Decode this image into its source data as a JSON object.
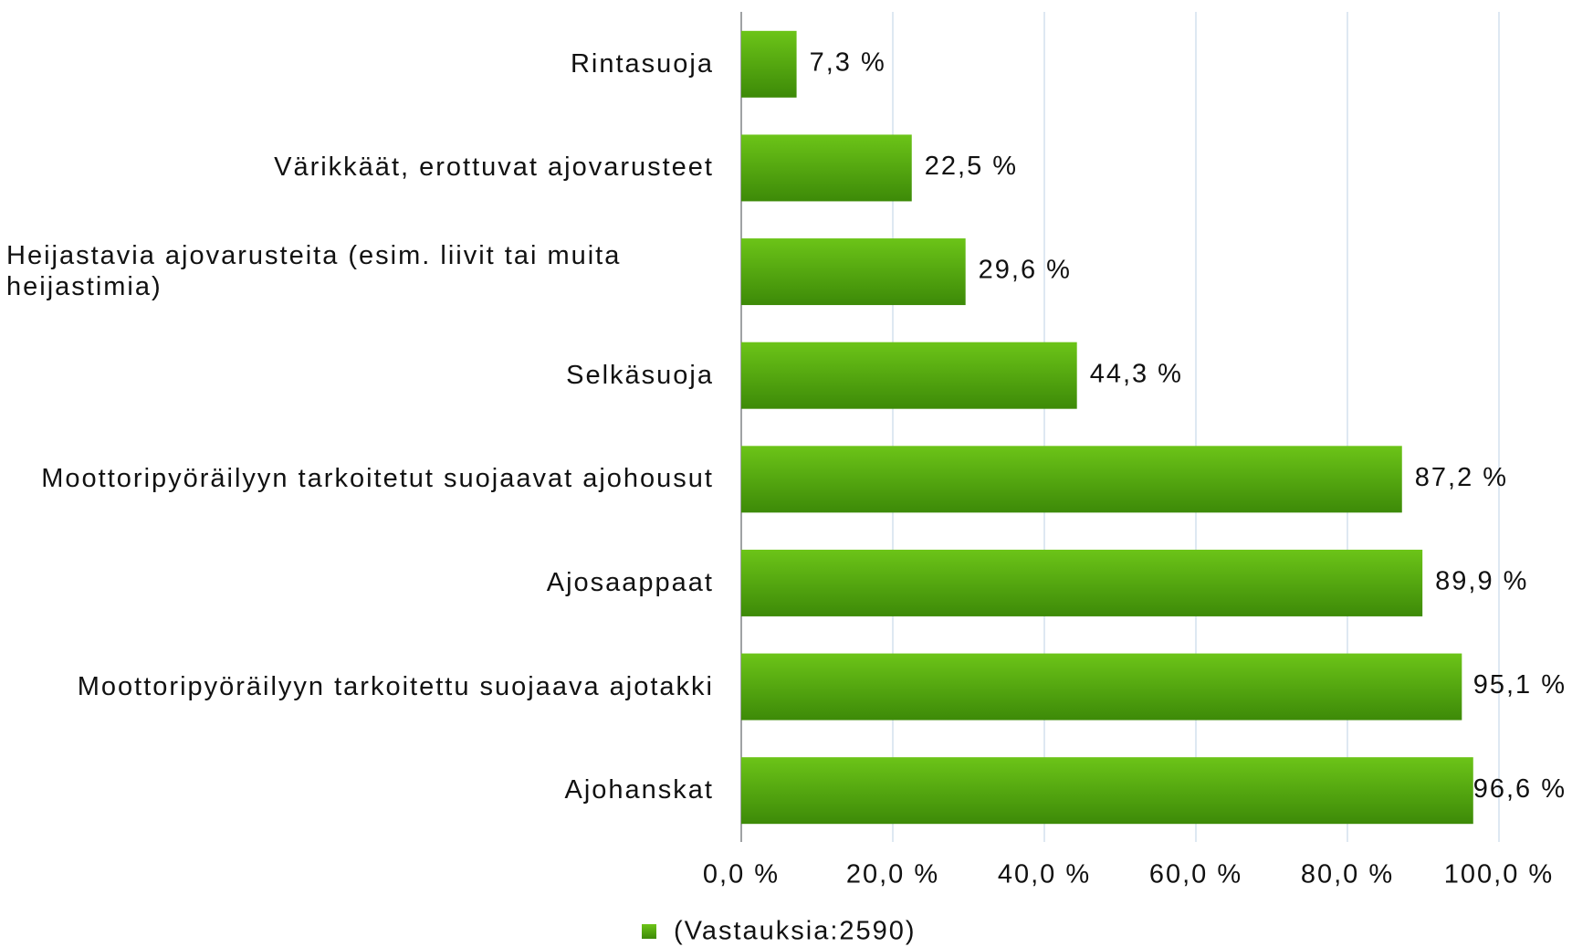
{
  "chart_data": {
    "type": "barh",
    "categories": [
      "Rintasuoja",
      "Värikkäät, erottuvat ajovarusteet",
      "Heijastavia ajovarusteita (esim. liivit tai muita heijastimia)",
      "Selkäsuoja",
      "Moottoripyöräilyyn tarkoitetut suojaavat ajohousut",
      "Ajosaappaat",
      "Moottoripyöräilyyn tarkoitettu suojaava ajotakki",
      "Ajohanskat"
    ],
    "series": [
      {
        "name": "(Vastauksia:2590)",
        "color": "#5aad12",
        "values": [
          7.3,
          22.5,
          29.6,
          44.3,
          87.2,
          89.9,
          95.1,
          96.6
        ],
        "value_labels": [
          "7,3 %",
          "22,5 %",
          "29,6 %",
          "44,3 %",
          "87,2 %",
          "89,9 %",
          "95,1 %",
          "96,6 %"
        ]
      }
    ],
    "xlim": [
      0,
      100
    ],
    "xticks": [
      {
        "value": 0,
        "label": "0,0 %"
      },
      {
        "value": 20,
        "label": "20,0 %"
      },
      {
        "value": 40,
        "label": "40,0 %"
      },
      {
        "value": 60,
        "label": "60,0 %"
      },
      {
        "value": 80,
        "label": "80,0 %"
      },
      {
        "value": 100,
        "label": "100,0 %"
      }
    ],
    "grid": true,
    "legend": "bottom"
  }
}
